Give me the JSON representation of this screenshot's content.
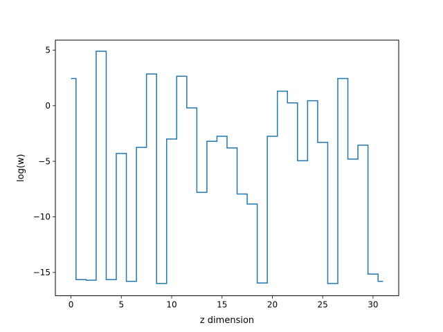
{
  "chart_data": {
    "type": "line",
    "drawstyle": "steps-mid",
    "xlabel": "z dimension",
    "ylabel": "log(w)",
    "xlim": [
      -1.55,
      32.55
    ],
    "ylim": [
      -17.1,
      5.9
    ],
    "xticks": [
      0,
      5,
      10,
      15,
      20,
      25,
      30
    ],
    "xtick_labels": [
      "0",
      "5",
      "10",
      "15",
      "20",
      "25",
      "30"
    ],
    "yticks": [
      -15,
      -10,
      -5,
      0,
      5
    ],
    "ytick_labels": [
      "−15",
      "−10",
      "−5",
      "0",
      "5"
    ],
    "grid": false,
    "series": [
      {
        "color": "#1f77b4",
        "x": [
          0,
          1,
          2,
          3,
          4,
          5,
          6,
          7,
          8,
          9,
          10,
          11,
          12,
          13,
          14,
          15,
          16,
          17,
          18,
          19,
          20,
          21,
          22,
          23,
          24,
          25,
          26,
          27,
          28,
          29,
          30,
          31
        ],
        "y": [
          2.45,
          -15.65,
          -15.7,
          4.9,
          -15.65,
          -4.3,
          -15.8,
          -3.75,
          2.85,
          -16.0,
          -3.0,
          2.65,
          -0.2,
          -7.8,
          -3.2,
          -2.75,
          -3.8,
          -7.95,
          -8.85,
          -15.95,
          -2.75,
          1.3,
          0.25,
          -4.95,
          0.45,
          -3.3,
          -16.0,
          2.45,
          -4.8,
          -3.55,
          -15.15,
          -15.8
        ]
      }
    ]
  }
}
